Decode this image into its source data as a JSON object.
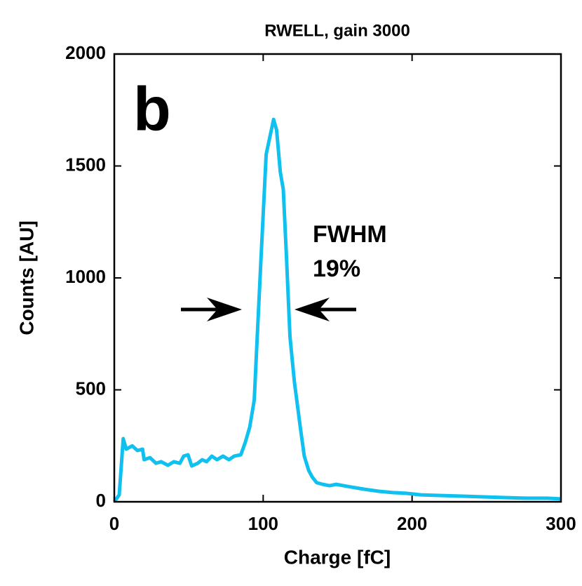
{
  "chart_data": {
    "type": "line",
    "title": "RWELL, gain 3000",
    "xlabel": "Charge [fC]",
    "ylabel": "Counts [AU]",
    "annotations": [
      "b",
      "FWHM",
      "19%"
    ],
    "x": [
      0,
      3.3,
      6,
      8,
      12,
      15.5,
      19,
      20,
      24,
      28,
      31.5,
      36,
      40,
      44,
      46.6,
      49.5,
      52,
      56,
      59,
      62,
      65.5,
      69,
      73,
      77,
      80.5,
      85,
      88,
      91,
      94,
      96,
      98.5,
      102,
      104.5,
      107,
      109,
      111.5,
      113.5,
      115.5,
      118,
      121,
      125,
      127.6,
      130.5,
      133,
      136,
      140,
      144.6,
      149,
      154,
      159,
      168,
      177.6,
      187,
      196,
      206,
      220,
      234,
      248,
      262,
      276.5,
      290.6,
      300
    ],
    "series": [
      {
        "name": "RWELL",
        "color": "#10c0ee",
        "values": [
          0,
          31,
          282,
          235,
          250,
          229,
          235,
          188,
          197,
          172,
          179,
          163,
          179,
          172,
          204,
          210,
          160,
          172,
          188,
          179,
          204,
          188,
          204,
          188,
          204,
          210,
          266,
          335,
          455,
          737,
          1082,
          1552,
          1630,
          1708,
          1661,
          1473,
          1395,
          1113,
          737,
          533,
          329,
          204,
          141,
          110,
          85,
          78,
          72,
          78,
          72,
          66,
          56,
          47,
          41,
          38,
          31,
          28,
          25,
          22,
          19,
          16,
          16,
          13
        ]
      }
    ],
    "xlim": [
      0,
      300
    ],
    "xticks": [
      0,
      100,
      200,
      300
    ],
    "ylim": [
      0,
      2000
    ],
    "yticks": [
      0,
      500,
      1000,
      1500,
      2000
    ]
  }
}
